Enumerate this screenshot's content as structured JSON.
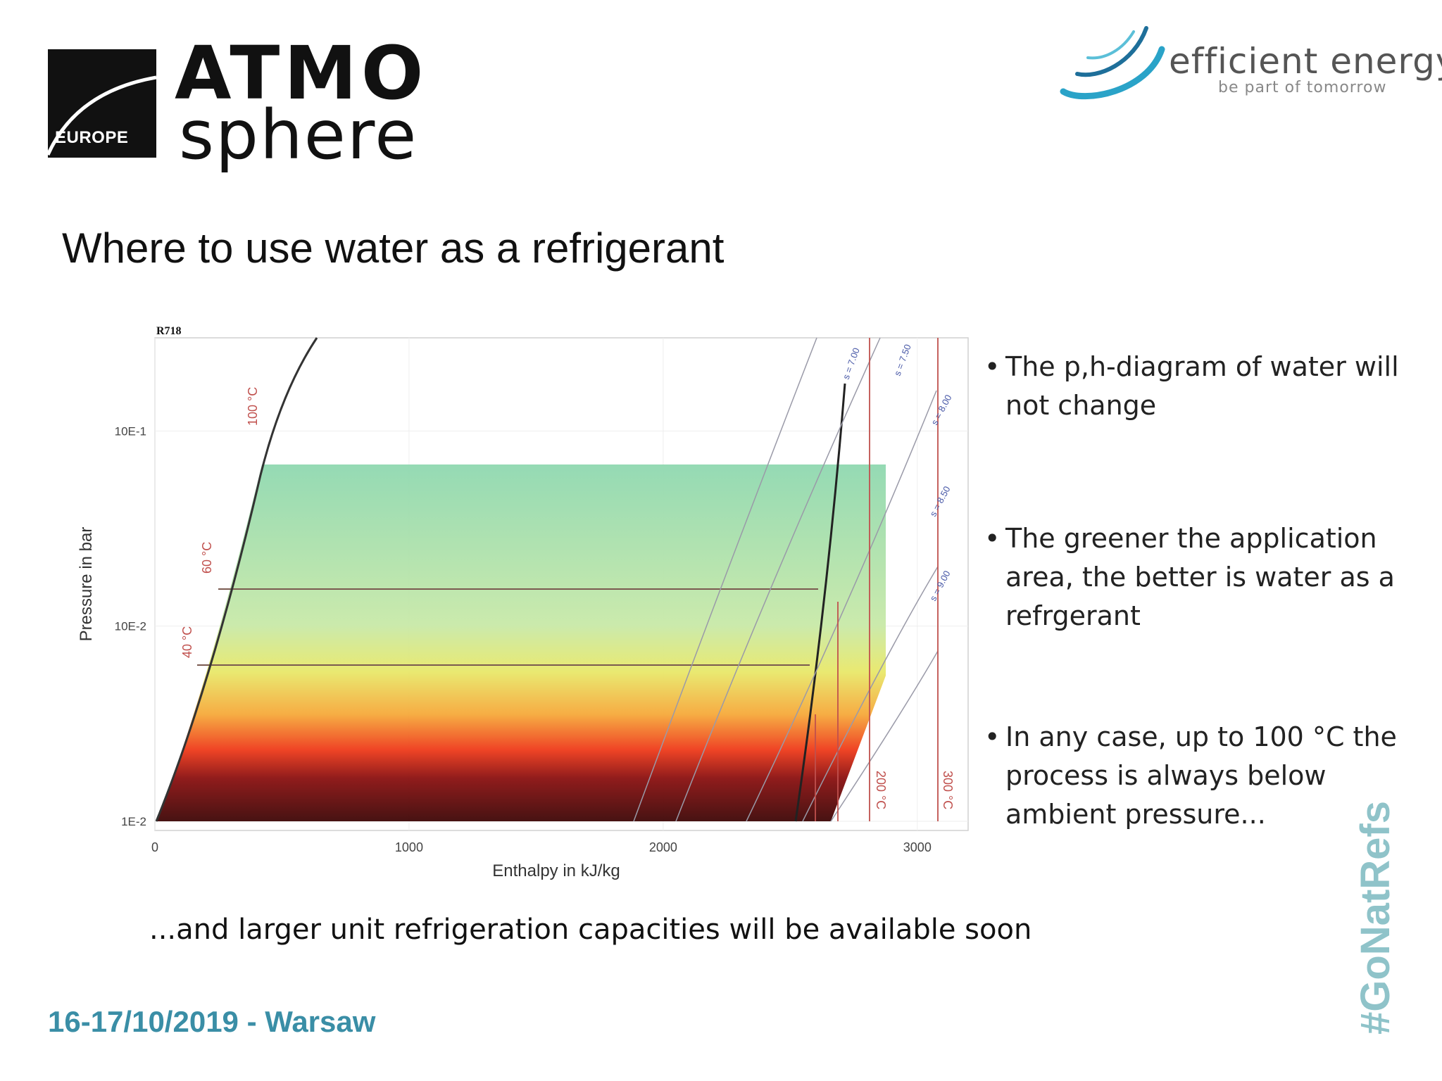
{
  "brand": {
    "atmo_word_1": "ATMO",
    "atmo_word_2": "sphere",
    "atmo_region": "EUROPE",
    "partner_name": "efficient energy",
    "partner_tagline": "be part of tomorrow"
  },
  "slide": {
    "title": "Where to use water as a refrigerant",
    "bullets": [
      "The p,h-diagram of water will not change",
      "The greener the application area, the better is water as a refrgerant",
      "In any case, up to 100 °C the process is always below ambient pressure..."
    ],
    "footnote": "...and larger unit refrigeration capacities will be available soon",
    "event": "16-17/10/2019 - Warsaw",
    "hashtag": "#GoNatRefs"
  },
  "chart_data": {
    "type": "ph-diagram",
    "refrigerant": "R718",
    "xlabel": "Enthalpy in kJ/kg",
    "ylabel": "Pressure in bar",
    "x_ticks": [
      "0",
      "1000",
      "2000",
      "3000"
    ],
    "y_ticks": [
      "1E-2",
      "10E-2",
      "10E-1"
    ],
    "xlim": [
      0,
      3200
    ],
    "ylim": [
      0.01,
      3
    ],
    "y_scale": "log",
    "application_area": {
      "h_range": [
        400,
        2880
      ],
      "p_top": 0.1,
      "gradient": [
        "dark red",
        "red",
        "orange",
        "yellow",
        "light green"
      ]
    },
    "isotherms": [
      "40 °C",
      "60 °C",
      "100 °C",
      "200 °C",
      "300 °C"
    ],
    "isentropes": [
      "s = 7.00",
      "s = 7.50",
      "s = 8.00",
      "s = 8.50",
      "s = 9.00"
    ],
    "colors": {
      "isotherm": "#c0504d",
      "isentrope": "#4a5aa8",
      "saturation": "#333333"
    }
  }
}
